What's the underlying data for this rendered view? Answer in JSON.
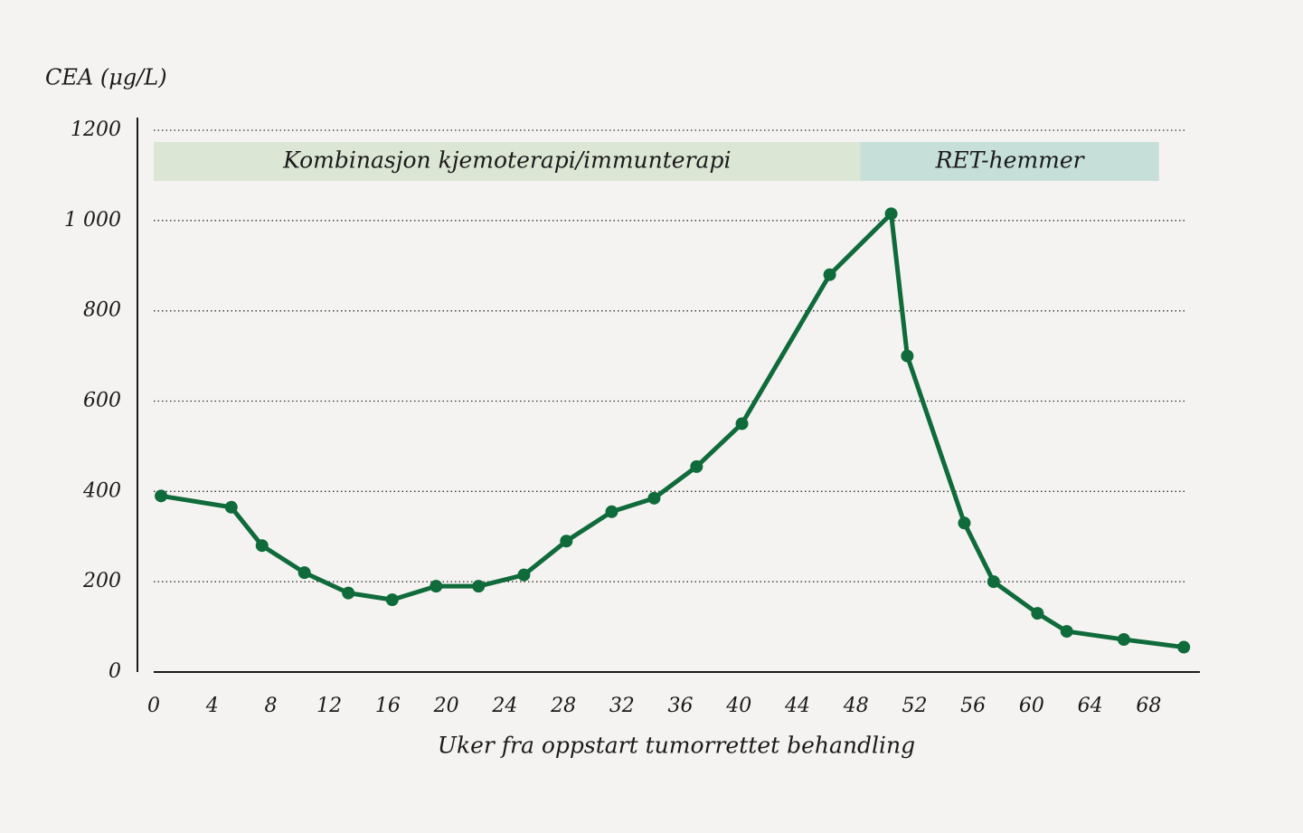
{
  "chart_data": {
    "type": "line",
    "y_label": "CEA (μg/L)",
    "x_label": "Uker fra oppstart tumorrettet behandling",
    "x": [
      0.5,
      5.3,
      7.4,
      10.3,
      13.3,
      16.3,
      19.3,
      22.2,
      25.3,
      28.2,
      31.3,
      34.2,
      37.1,
      40.2,
      46.2,
      50.4,
      51.5,
      55.4,
      57.4,
      60.4,
      62.4,
      66.3,
      70.4
    ],
    "series": [
      {
        "name": "CEA",
        "color": "#0f6b3a",
        "values": [
          390,
          365,
          280,
          220,
          175,
          160,
          190,
          190,
          215,
          290,
          355,
          385,
          455,
          550,
          880,
          1015,
          700,
          330,
          200,
          130,
          90,
          72,
          55
        ]
      }
    ],
    "phases": [
      {
        "label": "Kombinasjon kjemoterapi/immunterapi",
        "start": 0,
        "end": 48.3,
        "color": "#dbe6d4"
      },
      {
        "label": "RET-hemmer",
        "start": 48.3,
        "end": 68.7,
        "color": "#c7dfd9"
      }
    ],
    "xlim": [
      0,
      71.5
    ],
    "ylim": [
      0,
      1200
    ],
    "xticks": [
      0,
      4,
      8,
      12,
      16,
      20,
      24,
      28,
      32,
      36,
      40,
      44,
      48,
      52,
      56,
      60,
      64,
      68
    ],
    "yticks": [
      0,
      200,
      400,
      600,
      800,
      {
        "value": 1000,
        "label": "1 000"
      },
      1200
    ],
    "grid": true
  }
}
